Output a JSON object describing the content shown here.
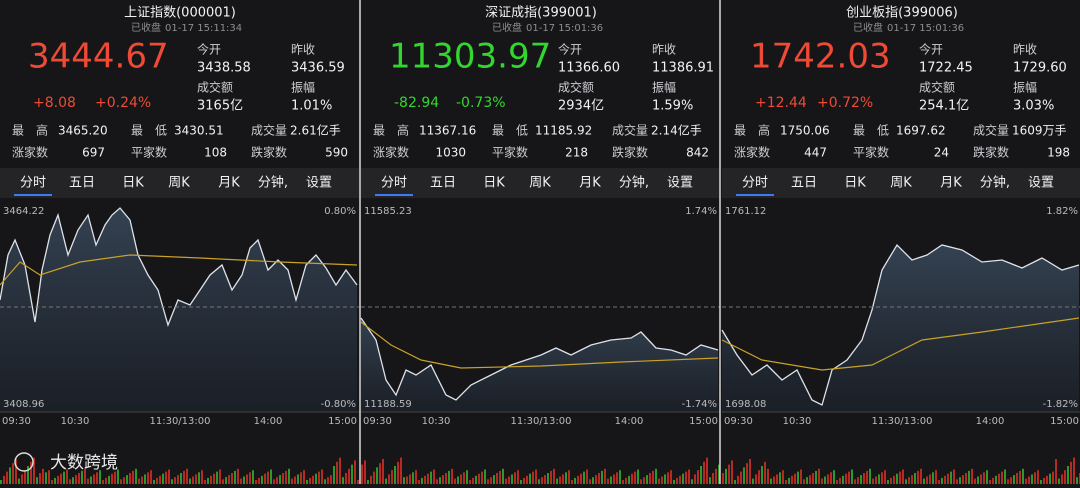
{
  "labels": {
    "open": "今开",
    "prev": "昨收",
    "amount": "成交额",
    "amplitude": "振幅",
    "high": "最　高",
    "low": "最　低",
    "volume": "成交量",
    "up": "涨家数",
    "flat": "平家数",
    "down": "跌家数"
  },
  "tabs": [
    "分时",
    "五日",
    "日K",
    "周K",
    "月K",
    "分钟,",
    "设置"
  ],
  "x_labels": [
    "09:30",
    "10:30",
    "11:30/13:00",
    "14:00",
    "15:00"
  ],
  "watermark": "大数跨境",
  "panels": [
    {
      "title": "上证指数(000001)",
      "status": "已收盘",
      "time": "01-17 15:11:34",
      "price": "3444.67",
      "change": "+8.08",
      "change_pct": "+0.24%",
      "open": "3438.58",
      "prev": "3436.59",
      "amount": "3165亿",
      "amplitude": "1.01%",
      "high": "3465.20",
      "low": "3430.51",
      "volume": "2.61亿手",
      "up": "697",
      "flat": "108",
      "down": "590",
      "y_top": "3464.22",
      "y_bottom": "3408.96",
      "pct_top": "0.80%",
      "pct_bottom": "-0.80%"
    },
    {
      "title": "深证成指(399001)",
      "status": "已收盘",
      "time": "01-17 15:01:36",
      "price": "11303.97",
      "change": "-82.94",
      "change_pct": "-0.73%",
      "open": "11366.60",
      "prev": "11386.91",
      "amount": "2934亿",
      "amplitude": "1.59%",
      "high": "11367.16",
      "low": "11185.92",
      "volume": "2.14亿手",
      "up": "1030",
      "flat": "218",
      "down": "842",
      "y_top": "11585.23",
      "y_bottom": "11188.59",
      "pct_top": "1.74%",
      "pct_bottom": "-1.74%"
    },
    {
      "title": "创业板指(399006)",
      "status": "已收盘",
      "time": "01-17 15:01:36",
      "price": "1742.03",
      "change": "+12.44",
      "change_pct": "+0.72%",
      "open": "1722.45",
      "prev": "1729.60",
      "amount": "254.1亿",
      "amplitude": "3.03%",
      "high": "1750.06",
      "low": "1697.62",
      "volume": "1609万手",
      "up": "447",
      "flat": "24",
      "down": "198",
      "y_top": "1761.12",
      "y_bottom": "1698.08",
      "pct_top": "1.82%",
      "pct_bottom": "-1.82%"
    }
  ]
}
